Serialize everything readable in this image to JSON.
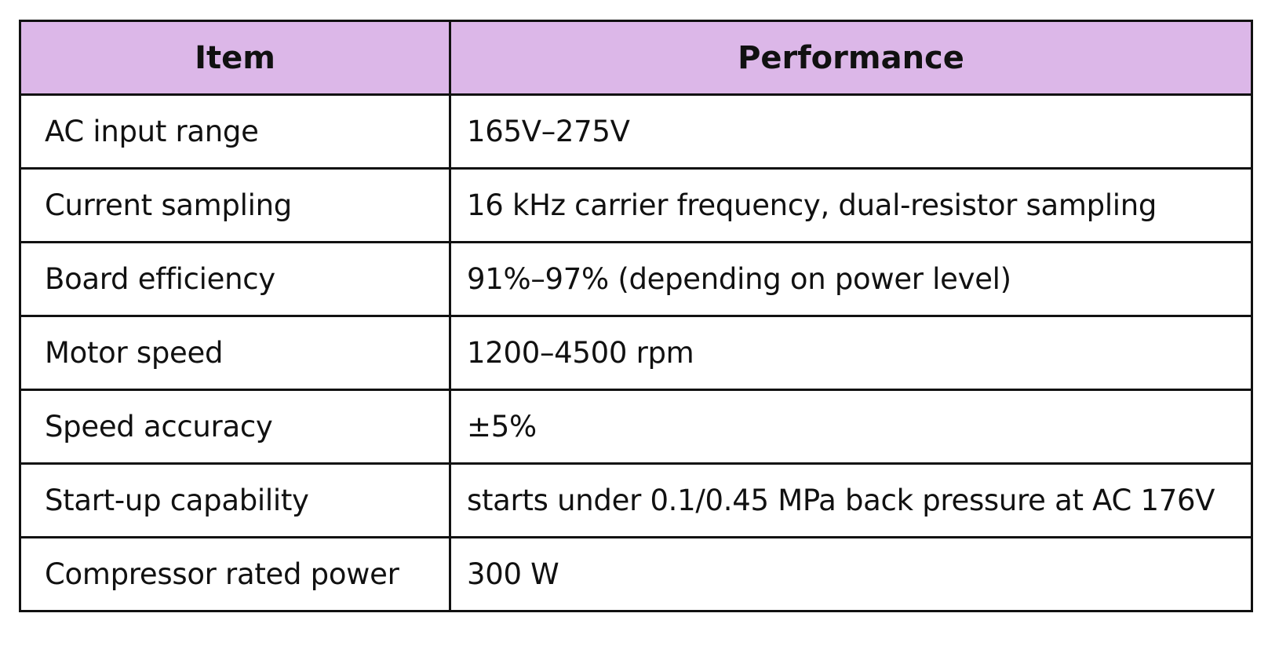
{
  "table": {
    "headers": {
      "item": "Item",
      "performance": "Performance"
    },
    "rows": [
      {
        "item": "AC input range",
        "performance": "165V–275V"
      },
      {
        "item": "Current sampling",
        "performance": "16 kHz carrier frequency, dual-resistor sampling"
      },
      {
        "item": "Board efficiency",
        "performance": "91%–97% (depending on power level)"
      },
      {
        "item": "Motor speed",
        "performance": "1200–4500 rpm"
      },
      {
        "item": "Speed accuracy",
        "performance": "±5%"
      },
      {
        "item": "Start-up capability",
        "performance": "starts under 0.1/0.45 MPa back pressure at AC 176V"
      },
      {
        "item": "Compressor rated power",
        "performance": "300 W"
      }
    ]
  },
  "colors": {
    "header_background": "#dcb7e8",
    "border": "#111111",
    "text": "#111111"
  }
}
